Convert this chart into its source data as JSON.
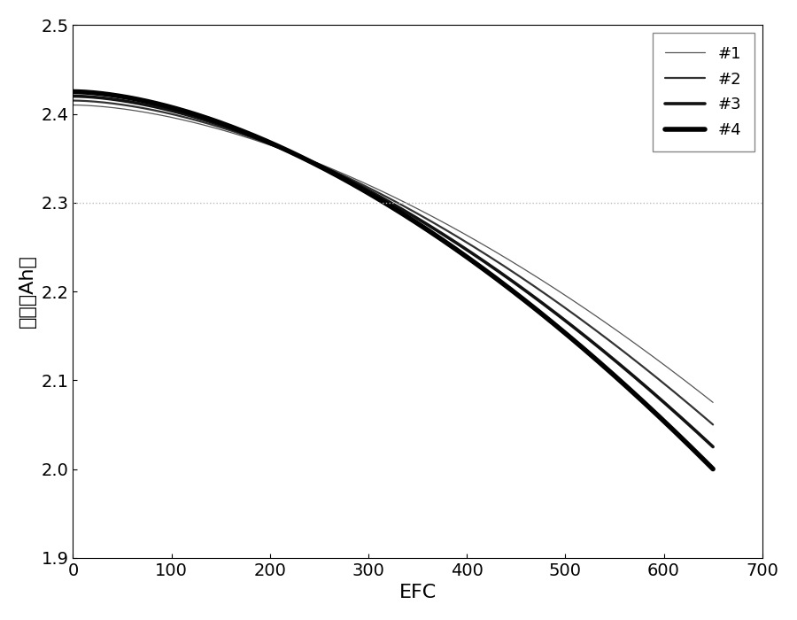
{
  "title": "",
  "xlabel": "EFC",
  "ylabel": "容量（Ah）",
  "xlim": [
    0,
    700
  ],
  "ylim": [
    1.9,
    2.5
  ],
  "xticks": [
    0,
    100,
    200,
    300,
    400,
    500,
    600,
    700
  ],
  "yticks": [
    1.9,
    2.0,
    2.1,
    2.2,
    2.3,
    2.4,
    2.5
  ],
  "hline_y": 2.3,
  "hline_color": "#bbbbbb",
  "hline_style": "dotted",
  "curves": [
    {
      "label": "#1",
      "start": 2.41,
      "end": 2.075,
      "linewidth": 0.9,
      "color": "#555555"
    },
    {
      "label": "#2",
      "start": 2.415,
      "end": 2.05,
      "linewidth": 1.6,
      "color": "#333333"
    },
    {
      "label": "#3",
      "start": 2.42,
      "end": 2.025,
      "linewidth": 2.6,
      "color": "#111111"
    },
    {
      "label": "#4",
      "start": 2.425,
      "end": 2.0,
      "linewidth": 4.0,
      "color": "#000000"
    }
  ],
  "efc_max": 650,
  "curve_exponent": 1.7,
  "background_color": "#ffffff",
  "xlabel_fontsize": 16,
  "ylabel_fontsize": 16,
  "tick_fontsize": 14,
  "legend_fontsize": 13
}
